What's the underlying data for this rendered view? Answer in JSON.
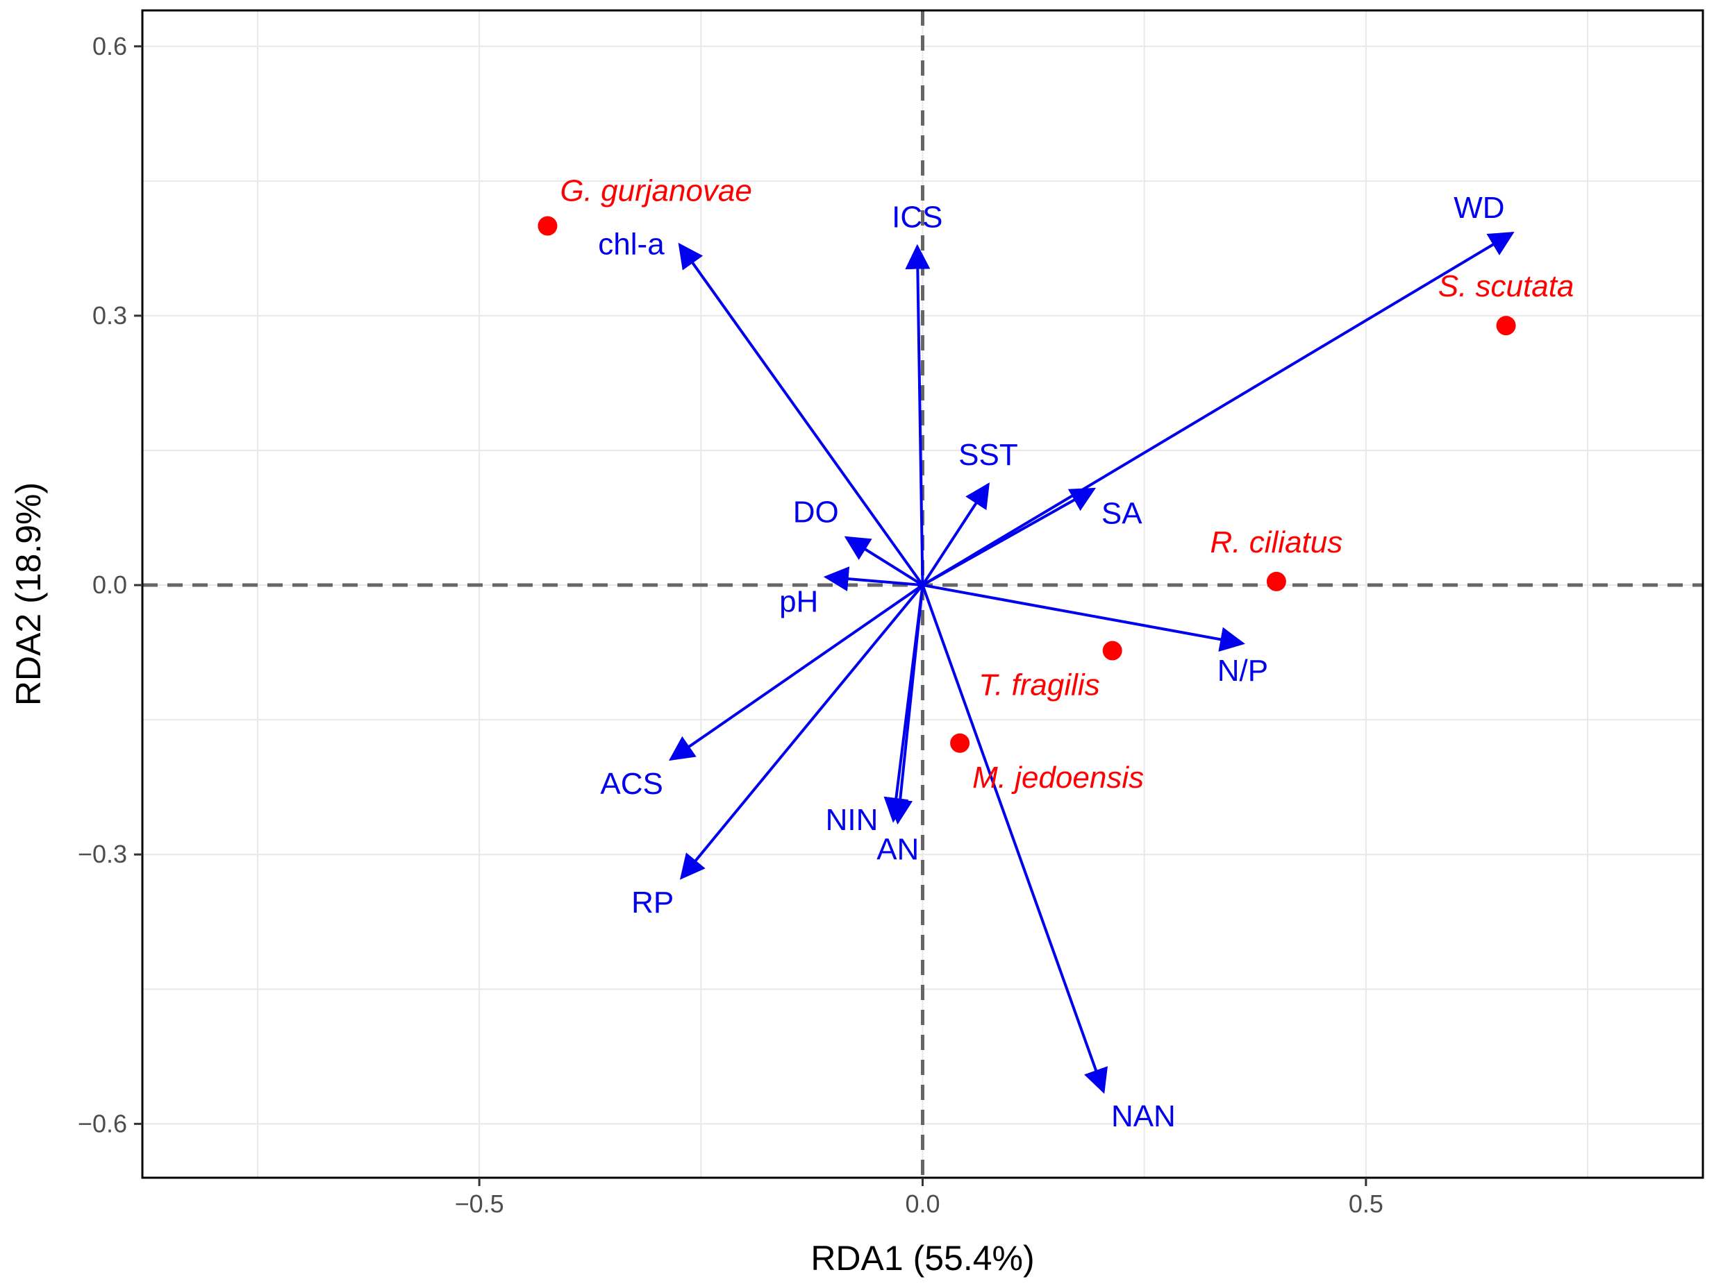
{
  "chart_data": {
    "type": "scatter",
    "title": "",
    "xlabel": "RDA1 (55.4%)",
    "ylabel": "RDA2 (18.9%)",
    "xlim": [
      -0.88,
      0.88
    ],
    "ylim": [
      -0.66,
      0.64
    ],
    "xticks": [
      -0.5,
      0.0,
      0.5
    ],
    "xtick_labels": [
      "−0.5",
      "0.0",
      "0.5"
    ],
    "yticks": [
      -0.6,
      -0.3,
      0.0,
      0.3,
      0.6
    ],
    "ytick_labels": [
      "−0.6",
      "−0.3",
      "0.0",
      "0.3",
      "0.6"
    ],
    "grid": true,
    "reference_lines": {
      "x": 0,
      "y": 0,
      "style": "dashed"
    },
    "colors": {
      "species": "#ff0000",
      "environment": "#0000ee",
      "reference": "#666666",
      "grid": "#e8e8e8",
      "frame": "#000000"
    },
    "species": [
      {
        "name": "G. gurjanovae",
        "x": -0.423,
        "y": 0.4,
        "label_pos": "above-right"
      },
      {
        "name": "S. scutata",
        "x": 0.658,
        "y": 0.289,
        "label_pos": "above"
      },
      {
        "name": "R. ciliatus",
        "x": 0.399,
        "y": 0.004,
        "label_pos": "above"
      },
      {
        "name": "T. fragilis",
        "x": 0.214,
        "y": -0.073,
        "label_pos": "below-left"
      },
      {
        "name": "M. jedoensis",
        "x": 0.042,
        "y": -0.176,
        "label_pos": "below-right"
      }
    ],
    "environment": [
      {
        "name": "WD",
        "x": 0.665,
        "y": 0.392,
        "label_pos": "above-left"
      },
      {
        "name": "chl-a",
        "x": -0.274,
        "y": 0.379,
        "label_pos": "left"
      },
      {
        "name": "ICS",
        "x": -0.006,
        "y": 0.377,
        "label_pos": "above"
      },
      {
        "name": "SST",
        "x": 0.074,
        "y": 0.112,
        "label_pos": "above"
      },
      {
        "name": "SA",
        "x": 0.193,
        "y": 0.107,
        "label_pos": "below-right"
      },
      {
        "name": "DO",
        "x": -0.086,
        "y": 0.053,
        "label_pos": "above-left"
      },
      {
        "name": "pH",
        "x": -0.109,
        "y": 0.009,
        "label_pos": "below-left"
      },
      {
        "name": "N/P",
        "x": 0.361,
        "y": -0.065,
        "label_pos": "below"
      },
      {
        "name": "ACS",
        "x": -0.284,
        "y": -0.194,
        "label_pos": "below-left"
      },
      {
        "name": "NIN",
        "x": -0.033,
        "y": -0.262,
        "label_pos": "left"
      },
      {
        "name": "AN",
        "x": -0.028,
        "y": -0.264,
        "label_pos": "below"
      },
      {
        "name": "RP",
        "x": -0.272,
        "y": -0.326,
        "label_pos": "below-left"
      },
      {
        "name": "NAN",
        "x": 0.204,
        "y": -0.564,
        "label_pos": "below-right"
      }
    ]
  }
}
